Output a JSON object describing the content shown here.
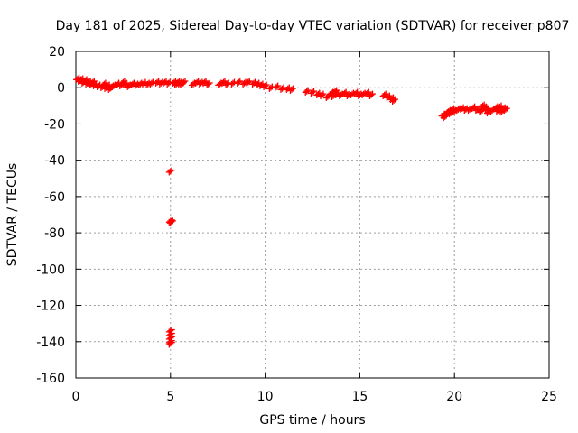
{
  "chart_data": {
    "type": "scatter",
    "title": "Day 181 of 2025, Sidereal Day-to-day VTEC variation (SDTVAR) for receiver p807",
    "xlabel": "GPS time / hours",
    "ylabel": "SDTVAR / TECUs",
    "xlim": [
      0,
      25
    ],
    "ylim": [
      -160,
      20
    ],
    "xticks": [
      0,
      5,
      10,
      15,
      20,
      25
    ],
    "yticks": [
      20,
      0,
      -20,
      -40,
      -60,
      -80,
      -100,
      -120,
      -140,
      -160
    ],
    "grid": true,
    "legend": "none",
    "marker": "plus",
    "color": "#ff0000",
    "series": [
      {
        "name": "SDTVAR",
        "points": [
          [
            0.1,
            5
          ],
          [
            0.2,
            4
          ],
          [
            0.3,
            4.5
          ],
          [
            0.4,
            3
          ],
          [
            0.5,
            4
          ],
          [
            0.6,
            2.5
          ],
          [
            0.7,
            3
          ],
          [
            0.8,
            2
          ],
          [
            0.9,
            3
          ],
          [
            1.0,
            1.5
          ],
          [
            1.2,
            1
          ],
          [
            1.4,
            0.5
          ],
          [
            1.5,
            2
          ],
          [
            1.6,
            0
          ],
          [
            1.7,
            1
          ],
          [
            1.8,
            -0.5
          ],
          [
            1.9,
            0.5
          ],
          [
            2.0,
            1
          ],
          [
            2.2,
            2
          ],
          [
            2.4,
            1.5
          ],
          [
            2.5,
            3
          ],
          [
            2.6,
            2
          ],
          [
            2.8,
            1
          ],
          [
            3.0,
            2
          ],
          [
            3.2,
            1.5
          ],
          [
            3.4,
            2
          ],
          [
            3.6,
            2.5
          ],
          [
            3.8,
            2
          ],
          [
            4.0,
            2.5
          ],
          [
            4.3,
            3
          ],
          [
            4.5,
            2.5
          ],
          [
            4.7,
            3
          ],
          [
            4.9,
            2.5
          ],
          [
            5.0,
            -46
          ],
          [
            5.0,
            -73.5
          ],
          [
            5.05,
            -74
          ],
          [
            5.0,
            -134
          ],
          [
            5.0,
            -136
          ],
          [
            5.0,
            -138
          ],
          [
            5.0,
            -140
          ],
          [
            5.0,
            -141
          ],
          [
            5.2,
            3
          ],
          [
            5.3,
            2
          ],
          [
            5.4,
            3
          ],
          [
            5.5,
            2.5
          ],
          [
            5.6,
            2
          ],
          [
            5.7,
            3
          ],
          [
            6.2,
            2
          ],
          [
            6.4,
            3
          ],
          [
            6.6,
            2.5
          ],
          [
            6.8,
            3
          ],
          [
            7.0,
            2
          ],
          [
            7.6,
            2
          ],
          [
            7.8,
            3
          ],
          [
            8.0,
            2
          ],
          [
            8.3,
            2.5
          ],
          [
            8.6,
            3
          ],
          [
            8.9,
            2.5
          ],
          [
            9.1,
            3
          ],
          [
            9.4,
            2.5
          ],
          [
            9.6,
            2
          ],
          [
            9.8,
            1.5
          ],
          [
            10.0,
            1
          ],
          [
            10.3,
            0
          ],
          [
            10.6,
            0.5
          ],
          [
            10.9,
            -0.5
          ],
          [
            11.2,
            -0.5
          ],
          [
            11.4,
            -1
          ],
          [
            12.2,
            -2
          ],
          [
            12.5,
            -2.5
          ],
          [
            12.8,
            -3.5
          ],
          [
            13.0,
            -4
          ],
          [
            13.3,
            -5
          ],
          [
            13.5,
            -3
          ],
          [
            13.6,
            -4.5
          ],
          [
            13.7,
            -2
          ],
          [
            13.8,
            -3.5
          ],
          [
            14.0,
            -4
          ],
          [
            14.2,
            -3
          ],
          [
            14.4,
            -4
          ],
          [
            14.6,
            -3.5
          ],
          [
            14.8,
            -3
          ],
          [
            15.0,
            -4
          ],
          [
            15.2,
            -3.5
          ],
          [
            15.4,
            -3
          ],
          [
            15.6,
            -4
          ],
          [
            16.3,
            -4
          ],
          [
            16.5,
            -5
          ],
          [
            16.7,
            -6
          ],
          [
            16.8,
            -7
          ],
          [
            19.4,
            -15
          ],
          [
            19.5,
            -16
          ],
          [
            19.6,
            -14
          ],
          [
            19.7,
            -13
          ],
          [
            19.8,
            -14
          ],
          [
            19.9,
            -12
          ],
          [
            20.0,
            -13
          ],
          [
            20.2,
            -12
          ],
          [
            20.4,
            -11.5
          ],
          [
            20.6,
            -12
          ],
          [
            20.8,
            -12
          ],
          [
            21.0,
            -11
          ],
          [
            21.2,
            -12
          ],
          [
            21.4,
            -13
          ],
          [
            21.5,
            -10
          ],
          [
            21.6,
            -11
          ],
          [
            21.7,
            -12
          ],
          [
            21.8,
            -13.5
          ],
          [
            22.0,
            -12.5
          ],
          [
            22.2,
            -11
          ],
          [
            22.3,
            -12.5
          ],
          [
            22.4,
            -10.5
          ],
          [
            22.5,
            -13
          ],
          [
            22.6,
            -11.5
          ],
          [
            22.7,
            -12
          ]
        ]
      }
    ]
  }
}
